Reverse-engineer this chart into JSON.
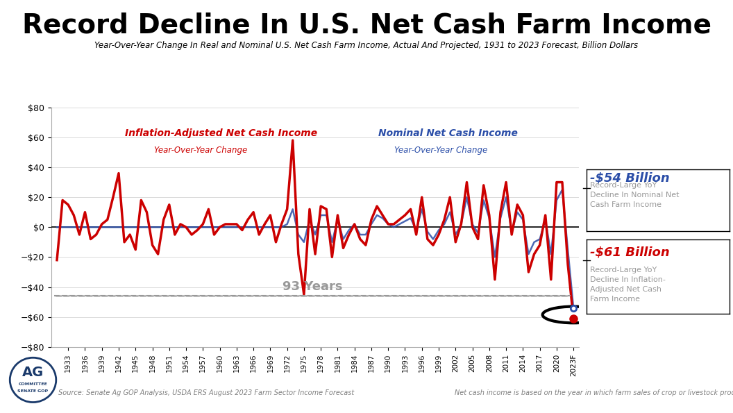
{
  "title": "Record Decline In U.S. Net Cash Farm Income",
  "subtitle": "Year-Over-Year Change In Real and Nominal U.S. Net Cash Farm Income, Actual And Projected, 1931 to 2023 Forecast, Billion Dollars",
  "source": "Source: Senate Ag GOP Analysis, USDA ERS August 2023 Farm Sector Income Forecast",
  "footnote": "Net cash income is based on the year in which farm sales of crop or livestock products occur.",
  "years": [
    1931,
    1932,
    1933,
    1934,
    1935,
    1936,
    1937,
    1938,
    1939,
    1940,
    1941,
    1942,
    1943,
    1944,
    1945,
    1946,
    1947,
    1948,
    1949,
    1950,
    1951,
    1952,
    1953,
    1954,
    1955,
    1956,
    1957,
    1958,
    1959,
    1960,
    1961,
    1962,
    1963,
    1964,
    1965,
    1966,
    1967,
    1968,
    1969,
    1970,
    1971,
    1972,
    1973,
    1974,
    1975,
    1976,
    1977,
    1978,
    1979,
    1980,
    1981,
    1982,
    1983,
    1984,
    1985,
    1986,
    1987,
    1988,
    1989,
    1990,
    1991,
    1992,
    1993,
    1994,
    1995,
    1996,
    1997,
    1998,
    1999,
    2000,
    2001,
    2002,
    2003,
    2004,
    2005,
    2006,
    2007,
    2008,
    2009,
    2010,
    2011,
    2012,
    2013,
    2014,
    2015,
    2016,
    2017,
    2018,
    2019,
    2020,
    2021,
    2022,
    2023
  ],
  "real_data": [
    -22,
    18,
    15,
    8,
    -5,
    10,
    -8,
    -5,
    2,
    5,
    20,
    36,
    -10,
    -5,
    -15,
    18,
    10,
    -12,
    -18,
    5,
    15,
    -5,
    2,
    0,
    -5,
    -2,
    2,
    12,
    -5,
    0,
    2,
    2,
    2,
    -2,
    5,
    10,
    -5,
    2,
    8,
    -10,
    2,
    12,
    58,
    -18,
    -45,
    12,
    -18,
    14,
    12,
    -20,
    8,
    -14,
    -5,
    2,
    -8,
    -12,
    5,
    14,
    8,
    2,
    2,
    5,
    8,
    12,
    -5,
    20,
    -8,
    -12,
    -5,
    5,
    20,
    -10,
    2,
    30,
    0,
    -8,
    28,
    8,
    -35,
    10,
    30,
    -5,
    15,
    8,
    -30,
    -18,
    -12,
    8,
    -35,
    30,
    30,
    -25,
    -61
  ],
  "nominal_data": [
    0,
    0,
    0,
    0,
    0,
    0,
    0,
    0,
    0,
    0,
    0,
    0,
    0,
    0,
    0,
    0,
    0,
    0,
    0,
    0,
    0,
    0,
    0,
    0,
    0,
    0,
    0,
    0,
    0,
    0,
    0,
    0,
    0,
    0,
    0,
    0,
    0,
    0,
    0,
    0,
    0,
    2,
    12,
    -5,
    -10,
    5,
    -5,
    8,
    8,
    -10,
    5,
    -8,
    -2,
    2,
    -5,
    -5,
    2,
    8,
    6,
    2,
    0,
    2,
    4,
    6,
    -2,
    12,
    -3,
    -8,
    -2,
    2,
    10,
    -5,
    2,
    20,
    2,
    -4,
    18,
    6,
    -20,
    6,
    20,
    -3,
    10,
    5,
    -18,
    -10,
    -8,
    5,
    -18,
    18,
    25,
    -15,
    -54
  ],
  "ylim": [
    -80,
    80
  ],
  "yticks": [
    -80,
    -60,
    -40,
    -20,
    0,
    20,
    40,
    60,
    80
  ],
  "background_color": "#ffffff",
  "red_color": "#CC0000",
  "blue_color": "#2B4EA8",
  "gray_color": "#999999",
  "title_color": "#000000",
  "annotation_blue": "#2B4EA8",
  "annotation_red": "#CC0000",
  "annotation_gray": "#888888"
}
